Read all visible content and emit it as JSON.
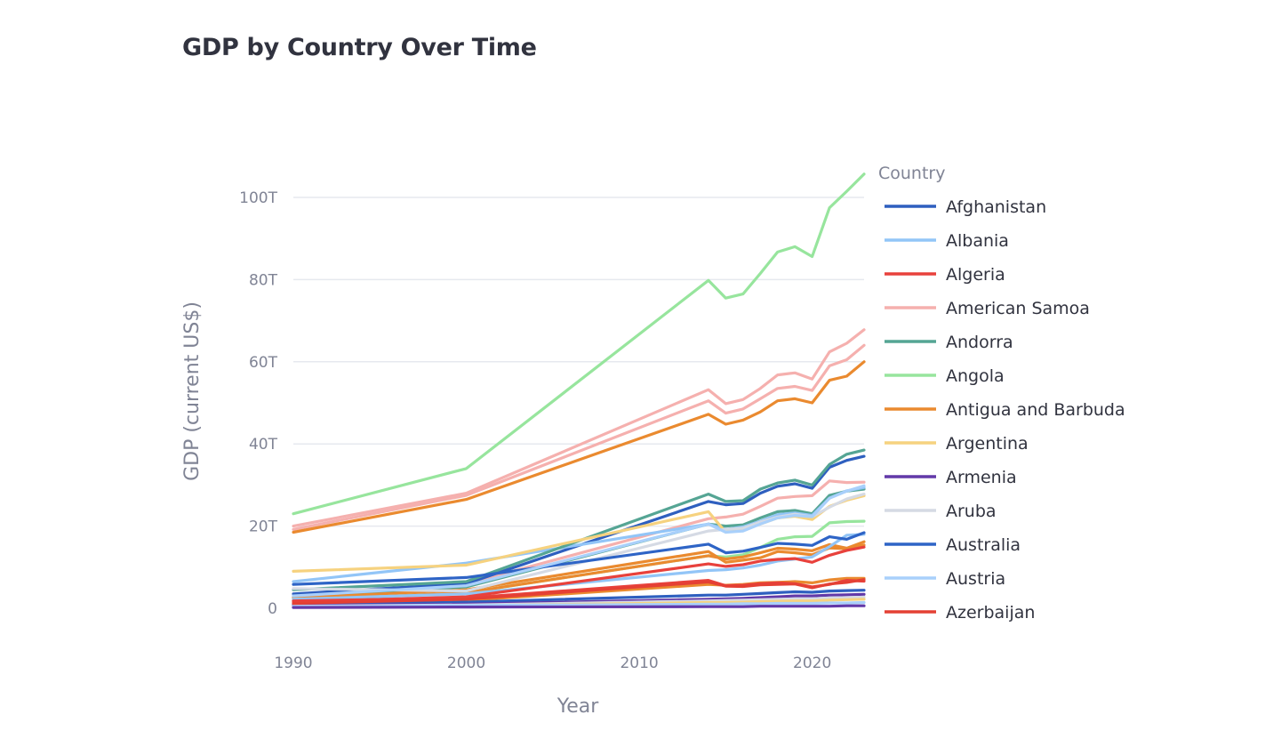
{
  "chart_data": {
    "type": "line",
    "title": "GDP by Country Over Time",
    "xlabel": "Year",
    "ylabel": "GDP (current US$)",
    "xlim": [
      1990,
      2023
    ],
    "ylim": [
      0,
      105
    ],
    "x_ticks": [
      {
        "value": 1990,
        "label": "1990"
      },
      {
        "value": 2000,
        "label": "2000"
      },
      {
        "value": 2010,
        "label": "2010"
      },
      {
        "value": 2020,
        "label": "2020"
      }
    ],
    "y_ticks": [
      {
        "value": 0,
        "label": "0"
      },
      {
        "value": 20,
        "label": "20T"
      },
      {
        "value": 40,
        "label": "40T"
      },
      {
        "value": 60,
        "label": "60T"
      },
      {
        "value": 80,
        "label": "80T"
      },
      {
        "value": 100,
        "label": "100T"
      }
    ],
    "grid": true,
    "legend": {
      "title": "Country",
      "placement": "right"
    },
    "x": [
      1990,
      2000,
      2014,
      2015,
      2016,
      2017,
      2018,
      2019,
      2020,
      2021,
      2022,
      2023
    ],
    "series": [
      {
        "name": "Afghanistan",
        "color": "#2e5fbf",
        "values": [
          3.5,
          6,
          26,
          25.2,
          25.5,
          28,
          29.7,
          30.3,
          29.2,
          34.3,
          36,
          37
        ]
      },
      {
        "name": "Albania",
        "color": "#92c5f7",
        "values": [
          6.5,
          11,
          20.5,
          19.2,
          19.8,
          21.2,
          22.8,
          23.2,
          22.6,
          26.8,
          28.6,
          29.4
        ]
      },
      {
        "name": "Algeria",
        "color": "#e8413c",
        "values": [
          1.5,
          2.8,
          10.8,
          10.2,
          10.6,
          11.5,
          11.9,
          12.1,
          11.2,
          12.9,
          14.1,
          14.9
        ]
      },
      {
        "name": "American Samoa",
        "color": "#f5b0ae",
        "values": [
          20,
          28,
          53.2,
          49.8,
          50.8,
          53.5,
          56.8,
          57.3,
          55.8,
          62.4,
          64.5,
          67.8
        ]
      },
      {
        "name": "Andorra",
        "color": "#55a594",
        "values": [
          4.5,
          6.5,
          27.8,
          26,
          26.2,
          29,
          30.5,
          31.2,
          30,
          35,
          37.5,
          38.5
        ]
      },
      {
        "name": "Angola",
        "color": "#97e59d",
        "values": [
          23,
          34,
          79.8,
          75.5,
          76.5,
          81.5,
          86.7,
          88,
          85.6,
          97.5,
          101.5,
          105.7
        ]
      },
      {
        "name": "Antigua and Barbuda",
        "color": "#ea8a2f",
        "values": [
          18.5,
          26.5,
          47.2,
          44.8,
          45.8,
          47.8,
          50.5,
          51,
          50,
          55.5,
          56.5,
          60
        ]
      },
      {
        "name": "Argentina",
        "color": "#f6d27f",
        "values": [
          9,
          10.5,
          23.5,
          18.5,
          19.3,
          20.5,
          22,
          22.4,
          21.6,
          24.8,
          26.3,
          27.4
        ]
      },
      {
        "name": "Armenia",
        "color": "#6239a8",
        "values": [
          0.2,
          0.3,
          0.4,
          0.4,
          0.4,
          0.5,
          0.5,
          0.5,
          0.5,
          0.5,
          0.6,
          0.6
        ]
      },
      {
        "name": "Aruba",
        "color": "#d5dae4",
        "values": [
          4.8,
          4.2,
          18.8,
          19.2,
          19.5,
          21,
          22.2,
          22.9,
          22.3,
          24.6,
          26.6,
          27.8
        ]
      },
      {
        "name": "Australia",
        "color": "#2e64c6",
        "values": [
          5.8,
          7.5,
          15.6,
          13.5,
          13.9,
          14.8,
          15.8,
          15.6,
          15.3,
          17.4,
          16.8,
          18.4
        ]
      },
      {
        "name": "Austria",
        "color": "#a9d0fb",
        "values": [
          3,
          5.5,
          20.5,
          18.5,
          18.8,
          20.5,
          22,
          22.6,
          22.3,
          26.8,
          28.5,
          29.8
        ]
      },
      {
        "name": "Azerbaijan",
        "color": "#e44034",
        "values": [
          1.2,
          2.2,
          6.4,
          5.4,
          5.3,
          5.7,
          5.8,
          5.9,
          5,
          5.9,
          6.3,
          7
        ]
      }
    ],
    "unlisted_series": [
      {
        "color": "#f5b0ae",
        "values": [
          19.2,
          27.5,
          50.5,
          47.5,
          48.5,
          51,
          53.5,
          54,
          53,
          59,
          60.5,
          64
        ]
      },
      {
        "color": "#f5b0ae",
        "values": [
          3,
          6,
          21.8,
          22.2,
          22.9,
          24.8,
          26.8,
          27.2,
          27.4,
          31,
          30.6,
          30.7
        ]
      },
      {
        "color": "#55a594",
        "values": [
          2.8,
          5.2,
          20.5,
          20,
          20.3,
          22,
          23.5,
          23.8,
          23,
          27.5,
          28.5,
          29
        ]
      },
      {
        "color": "#97e59d",
        "values": [
          1.8,
          3.8,
          12.8,
          12.5,
          13,
          14.8,
          16.8,
          17.4,
          17.5,
          20.8,
          21.1,
          21.2
        ]
      },
      {
        "color": "#ea8a2f",
        "values": [
          2.5,
          4.5,
          13.8,
          11.2,
          11.7,
          12.3,
          13.8,
          13.5,
          13,
          14.7,
          14.5,
          15.4
        ]
      },
      {
        "color": "#ea8a2f",
        "values": [
          1.8,
          3.8,
          12.8,
          12,
          12.5,
          13.5,
          14.6,
          14.4,
          14,
          15.5,
          14.6,
          16.2
        ]
      },
      {
        "color": "#ea8a2f",
        "values": [
          1,
          1.9,
          5.8,
          5.6,
          5.8,
          6.2,
          6.3,
          6.5,
          6.2,
          6.9,
          7.3,
          7.3
        ]
      },
      {
        "color": "#92c5f7",
        "values": [
          2.2,
          3.5,
          9.2,
          9.4,
          9.8,
          10.5,
          11.5,
          12,
          12.5,
          15,
          17.8,
          18
        ]
      },
      {
        "color": "#e8413c",
        "values": [
          1.8,
          2.5,
          6.8,
          5.5,
          5.6,
          6,
          6.2,
          6,
          5.2,
          5.8,
          6.8,
          6.6
        ]
      },
      {
        "color": "#2e5fbf",
        "values": [
          0.8,
          1.5,
          3.2,
          3.2,
          3.4,
          3.6,
          3.8,
          4,
          3.9,
          4.2,
          4.3,
          4.4
        ]
      },
      {
        "color": "#6239a8",
        "values": [
          0.6,
          1,
          2.2,
          2.3,
          2.4,
          2.6,
          2.8,
          3,
          3,
          3.2,
          3.3,
          3.4
        ]
      },
      {
        "color": "#d5dae4",
        "values": [
          0.5,
          0.8,
          1.8,
          1.9,
          2,
          2.1,
          2.2,
          2.3,
          2.3,
          2.5,
          2.6,
          2.7
        ]
      },
      {
        "color": "#f6d27f",
        "values": [
          0.3,
          0.6,
          1.4,
          1.4,
          1.5,
          1.6,
          1.7,
          1.8,
          1.8,
          2,
          2.1,
          2.2
        ]
      },
      {
        "color": "#a9d0fb",
        "values": [
          0.4,
          0.7,
          1,
          1,
          1.1,
          1.1,
          1.2,
          1.2,
          1.2,
          1.3,
          1.3,
          1.4
        ]
      }
    ]
  }
}
